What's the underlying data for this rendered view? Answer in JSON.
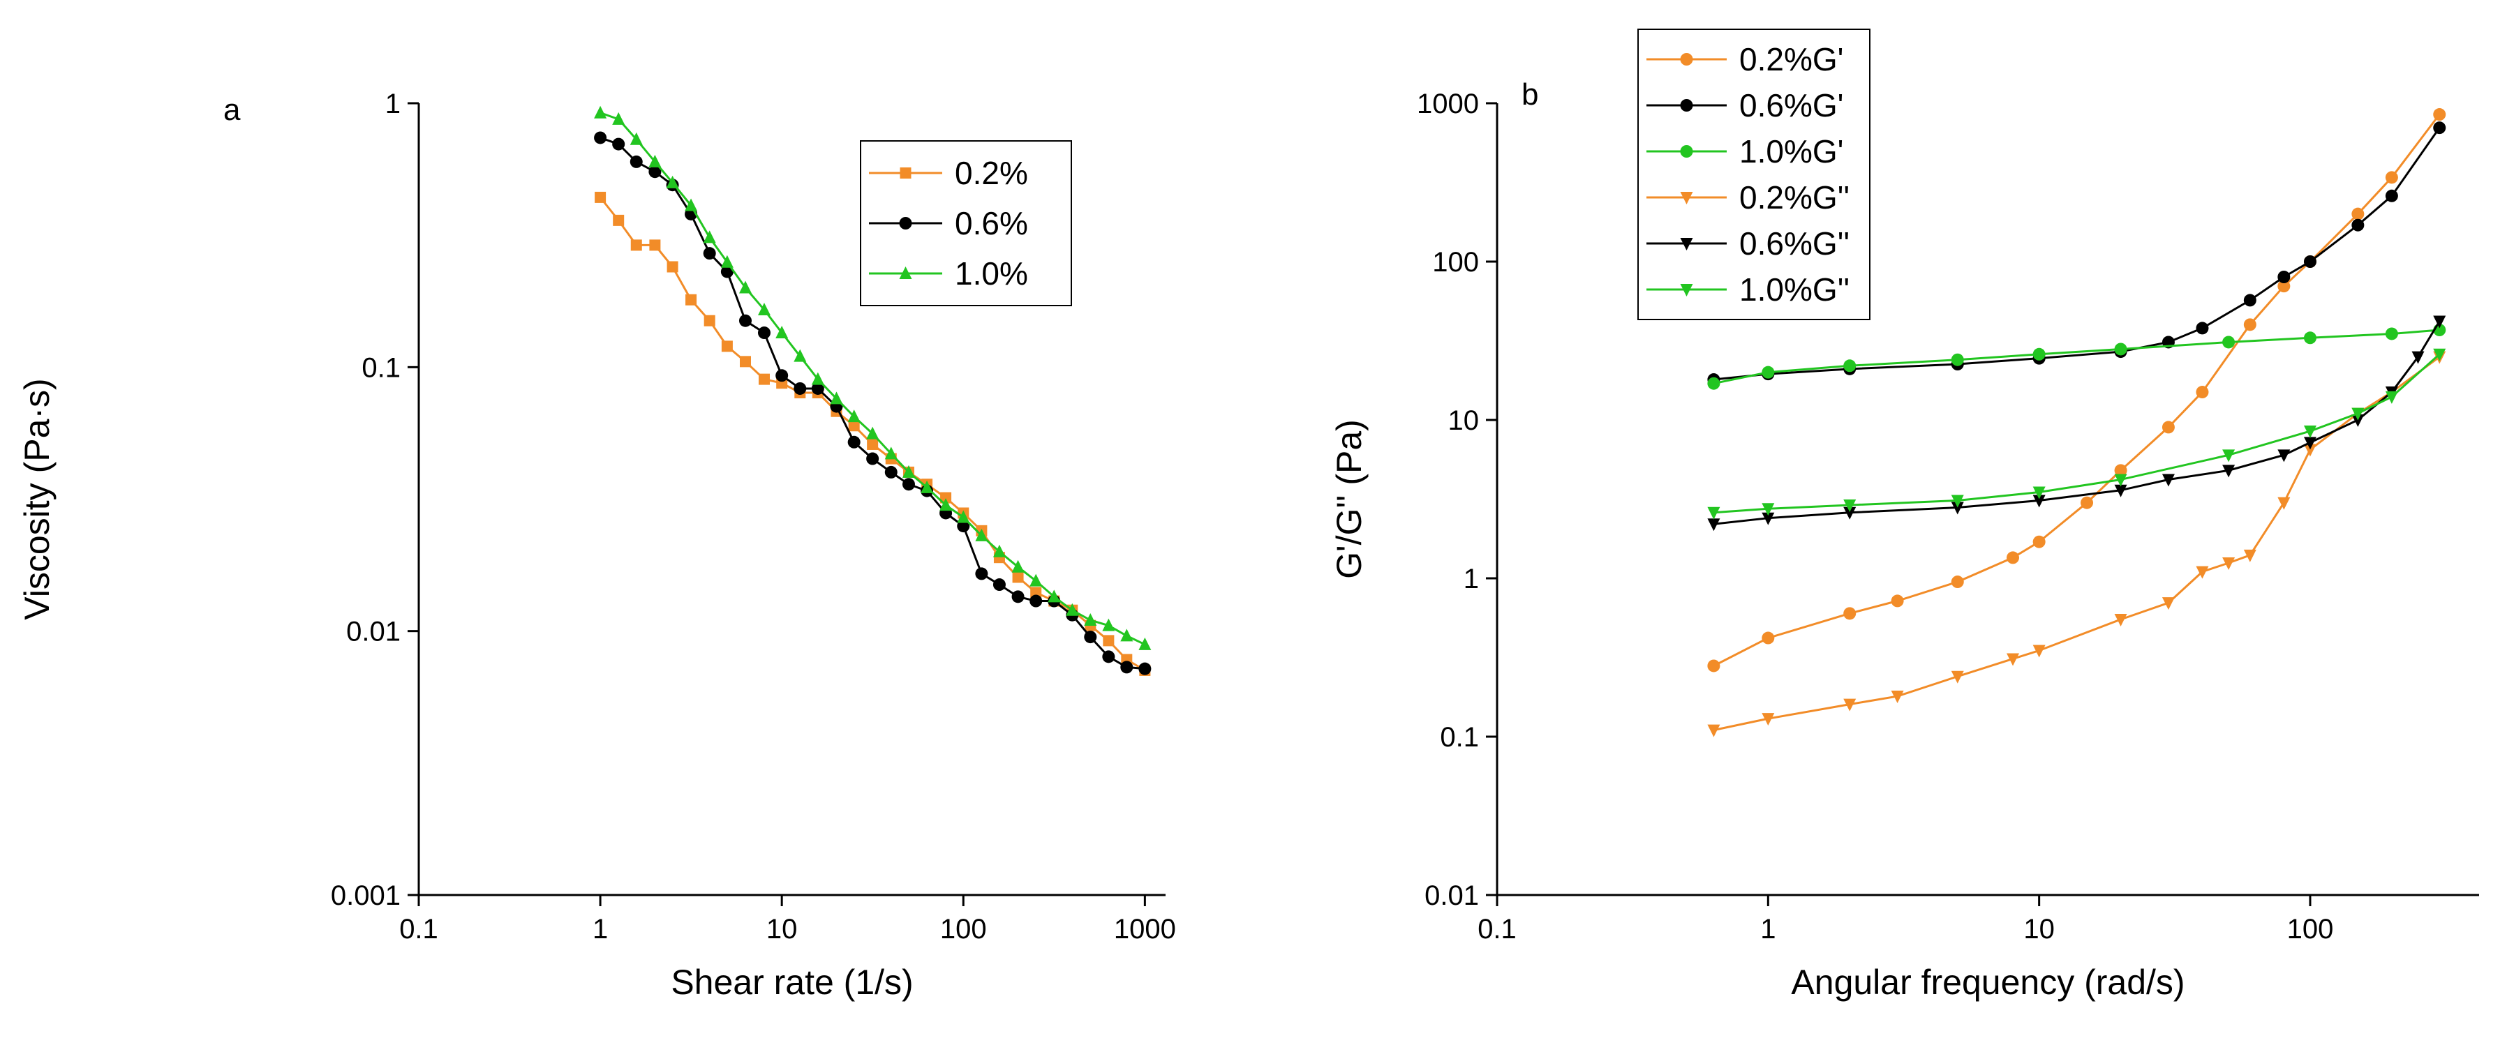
{
  "chart_data": [
    {
      "type": "line",
      "panel_label": "a",
      "xlabel": "Shear rate (1/s)",
      "ylabel": "Viscosity (Pa·s)",
      "xscale": "log",
      "yscale": "log",
      "xlim": [
        0.1,
        1300
      ],
      "ylim": [
        0.001,
        1
      ],
      "xticks": [
        0.1,
        1,
        10,
        100,
        1000
      ],
      "xtick_labels": [
        "0.1",
        "1",
        "10",
        "100",
        "1000"
      ],
      "yticks": [
        0.001,
        0.01,
        0.1,
        1
      ],
      "ytick_labels": [
        "0.001",
        "0.01",
        "0.1",
        "1"
      ],
      "grid": false,
      "legend_position": "top-right",
      "series": [
        {
          "name": "0.2%",
          "color": "#F28C28",
          "marker": "square",
          "x": [
            1,
            1.26,
            1.58,
            2,
            2.5,
            3.16,
            4,
            5,
            6.3,
            8,
            10,
            12.6,
            15.8,
            20,
            25,
            31.6,
            40,
            50,
            63,
            80,
            100,
            126,
            158,
            200,
            251,
            316,
            398,
            501,
            631,
            794,
            1000
          ],
          "y": [
            0.44,
            0.36,
            0.29,
            0.29,
            0.24,
            0.18,
            0.15,
            0.12,
            0.105,
            0.09,
            0.087,
            0.08,
            0.08,
            0.068,
            0.06,
            0.051,
            0.045,
            0.04,
            0.036,
            0.032,
            0.028,
            0.024,
            0.019,
            0.016,
            0.014,
            0.013,
            0.012,
            0.0105,
            0.0092,
            0.0078,
            0.0071
          ]
        },
        {
          "name": "0.6%",
          "color": "#000000",
          "marker": "circle",
          "x": [
            1,
            1.26,
            1.58,
            2,
            2.5,
            3.16,
            4,
            5,
            6.3,
            8,
            10,
            12.6,
            15.8,
            20,
            25,
            31.6,
            40,
            50,
            63,
            80,
            100,
            126,
            158,
            200,
            251,
            316,
            398,
            501,
            631,
            794,
            1000
          ],
          "y": [
            0.74,
            0.7,
            0.6,
            0.55,
            0.49,
            0.38,
            0.27,
            0.23,
            0.15,
            0.135,
            0.093,
            0.083,
            0.083,
            0.071,
            0.052,
            0.045,
            0.04,
            0.036,
            0.034,
            0.028,
            0.025,
            0.0165,
            0.015,
            0.0135,
            0.013,
            0.013,
            0.0115,
            0.0095,
            0.008,
            0.0073,
            0.0072
          ]
        },
        {
          "name": "1.0%",
          "color": "#22C520",
          "marker": "triangle",
          "x": [
            1,
            1.26,
            1.58,
            2,
            2.5,
            3.16,
            4,
            5,
            6.3,
            8,
            10,
            12.6,
            15.8,
            20,
            25,
            31.6,
            40,
            50,
            63,
            80,
            100,
            126,
            158,
            200,
            251,
            316,
            398,
            501,
            631,
            794,
            1000
          ],
          "y": [
            0.92,
            0.87,
            0.73,
            0.6,
            0.5,
            0.41,
            0.31,
            0.25,
            0.2,
            0.165,
            0.135,
            0.11,
            0.09,
            0.076,
            0.065,
            0.056,
            0.047,
            0.04,
            0.035,
            0.03,
            0.027,
            0.023,
            0.02,
            0.0175,
            0.0155,
            0.0135,
            0.012,
            0.011,
            0.0105,
            0.0096,
            0.0089
          ]
        }
      ]
    },
    {
      "type": "line",
      "panel_label": "b",
      "xlabel": "Angular frequency (rad/s)",
      "ylabel": "G'/G'' (Pa)",
      "xscale": "log",
      "yscale": "log",
      "xlim": [
        0.1,
        420
      ],
      "ylim": [
        0.01,
        1000
      ],
      "xticks": [
        0.1,
        1,
        10,
        100
      ],
      "xtick_labels": [
        "0.1",
        "1",
        "10",
        "100"
      ],
      "yticks": [
        0.01,
        0.1,
        1,
        10,
        100,
        1000
      ],
      "ytick_labels": [
        "0.01",
        "0.1",
        "1",
        "10",
        "100",
        "1000"
      ],
      "grid": false,
      "legend_position": "top-left",
      "series": [
        {
          "name": "0.2%G'",
          "color": "#F28C28",
          "marker": "circle",
          "x": [
            0.63,
            1,
            2,
            3,
            5,
            8,
            10,
            15,
            20,
            30,
            40,
            60,
            80,
            100,
            150,
            200,
            300
          ],
          "y": [
            0.28,
            0.42,
            0.6,
            0.72,
            0.95,
            1.35,
            1.7,
            3.0,
            4.8,
            9,
            15,
            40,
            70,
            100,
            200,
            340,
            850
          ]
        },
        {
          "name": "0.6%G'",
          "color": "#000000",
          "marker": "circle",
          "x": [
            0.63,
            1,
            2,
            5,
            10,
            20,
            30,
            40,
            60,
            80,
            100,
            150,
            200,
            300
          ],
          "y": [
            18,
            19.5,
            21,
            22.5,
            24.5,
            27,
            31,
            38,
            57,
            80,
            100,
            170,
            260,
            700
          ]
        },
        {
          "name": "1.0%G'",
          "color": "#22C520",
          "marker": "circle",
          "x": [
            0.63,
            1,
            2,
            5,
            10,
            20,
            50,
            100,
            200,
            300
          ],
          "y": [
            17,
            20,
            22,
            24,
            26,
            28,
            31,
            33,
            35,
            37
          ]
        },
        {
          "name": "0.2%G''",
          "color": "#F28C28",
          "marker": "triangle-down",
          "x": [
            0.63,
            1,
            2,
            3,
            5,
            8,
            10,
            20,
            30,
            40,
            50,
            60,
            80,
            100,
            150,
            200,
            300
          ],
          "y": [
            0.11,
            0.13,
            0.16,
            0.18,
            0.24,
            0.31,
            0.35,
            0.55,
            0.7,
            1.1,
            1.25,
            1.4,
            3,
            6.5,
            11,
            15,
            25
          ]
        },
        {
          "name": "0.6%G''",
          "color": "#000000",
          "marker": "triangle-down",
          "x": [
            0.63,
            1,
            2,
            5,
            10,
            20,
            30,
            50,
            80,
            100,
            150,
            200,
            250,
            300
          ],
          "y": [
            2.2,
            2.4,
            2.6,
            2.8,
            3.1,
            3.6,
            4.2,
            4.8,
            6,
            7.2,
            10,
            15,
            25,
            42
          ]
        },
        {
          "name": "1.0%G''",
          "color": "#22C520",
          "marker": "triangle-down",
          "x": [
            0.63,
            1,
            2,
            5,
            10,
            20,
            50,
            100,
            150,
            200,
            300
          ],
          "y": [
            2.6,
            2.75,
            2.9,
            3.1,
            3.5,
            4.2,
            6,
            8.5,
            11,
            14,
            26
          ]
        }
      ]
    }
  ]
}
